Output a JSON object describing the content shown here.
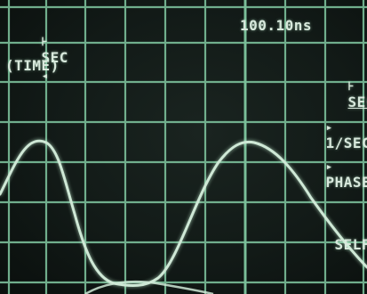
{
  "header": {
    "mode_label": "SEC",
    "mode_left_arrow": "⊦",
    "mode_right_arrow": "◂",
    "time_reading": "100.10ns",
    "subtitle": "(TIME)"
  },
  "softkeys": [
    {
      "marker": "⊦",
      "label": "SEC"
    },
    {
      "marker": "▸",
      "label": "1/SEC"
    },
    {
      "marker": "▸",
      "label": "PHASE"
    },
    {
      "marker": "",
      "label": "SELF C"
    }
  ],
  "colors": {
    "grid": "#7bbf9a",
    "trace": "#cfe8d6",
    "text": "#d8e8dc"
  },
  "icons": {
    "mode_left": "bracket-arrow-icon",
    "mode_right": "left-triangle-icon",
    "softkey_marker": "right-triangle-icon"
  }
}
